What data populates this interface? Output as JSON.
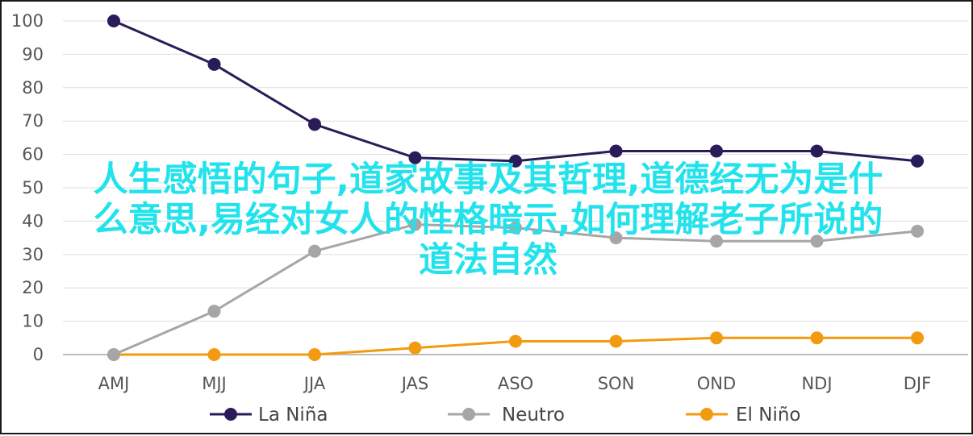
{
  "chart_data": {
    "type": "line",
    "categories": [
      "AMJ",
      "MJJ",
      "JJA",
      "JAS",
      "ASO",
      "SON",
      "OND",
      "NDJ",
      "DJF"
    ],
    "series": [
      {
        "name": "La Niña",
        "color": "#2a1b59",
        "values": [
          100,
          87,
          69,
          59,
          58,
          61,
          61,
          61,
          58
        ]
      },
      {
        "name": "Neutro",
        "color": "#a6a6a6",
        "values": [
          0,
          13,
          31,
          39,
          38,
          35,
          34,
          34,
          37
        ]
      },
      {
        "name": "El Niño",
        "color": "#f29b11",
        "values": [
          0,
          0,
          0,
          2,
          4,
          4,
          5,
          5,
          5
        ]
      }
    ],
    "ylim": [
      0,
      100
    ],
    "yticks": [
      0,
      10,
      20,
      30,
      40,
      50,
      60,
      70,
      80,
      90,
      100
    ],
    "grid": true,
    "legend": "bottom"
  },
  "overlay_lines": [
    "人生感悟的句子,道家故事及其哲理,道德经无为是什",
    "么意思,易经对女人的性格暗示,如何理解老子所说的",
    "道法自然"
  ],
  "overlay_color": "#22e2ec"
}
